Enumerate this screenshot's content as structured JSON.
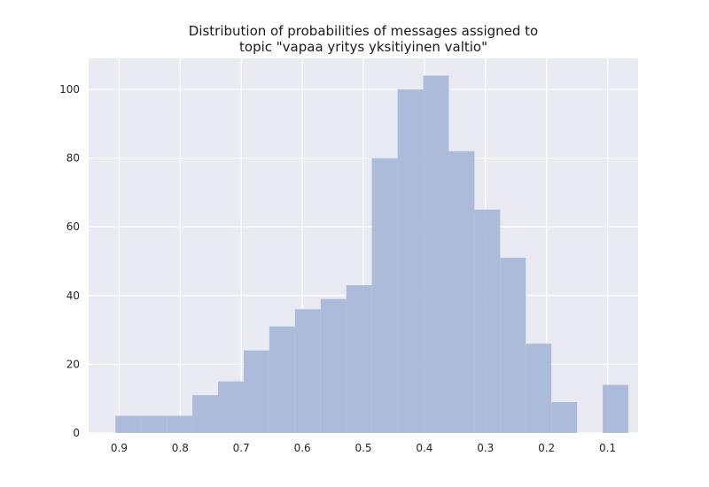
{
  "chart_data": {
    "type": "bar",
    "title_lines": [
      "Distribution of probabilities of messages assigned to",
      "topic \"vapaa yritys yksitiyinen valtio\""
    ],
    "xlabel": "",
    "ylabel": "",
    "x_axis_reversed": true,
    "xlim": [
      0.95,
      0.05
    ],
    "ylim": [
      0,
      109
    ],
    "x_ticks": [
      {
        "value": 0.9,
        "label": "0.9"
      },
      {
        "value": 0.8,
        "label": "0.8"
      },
      {
        "value": 0.7,
        "label": "0.7"
      },
      {
        "value": 0.6,
        "label": "0.6"
      },
      {
        "value": 0.5,
        "label": "0.5"
      },
      {
        "value": 0.4,
        "label": "0.4"
      },
      {
        "value": 0.3,
        "label": "0.3"
      },
      {
        "value": 0.2,
        "label": "0.2"
      },
      {
        "value": 0.1,
        "label": "0.1"
      }
    ],
    "y_ticks": [
      {
        "value": 0,
        "label": "0"
      },
      {
        "value": 20,
        "label": "20"
      },
      {
        "value": 40,
        "label": "40"
      },
      {
        "value": 60,
        "label": "60"
      },
      {
        "value": 80,
        "label": "80"
      },
      {
        "value": 100,
        "label": "100"
      }
    ],
    "bin_width": 0.042,
    "bins": [
      {
        "start": 0.906,
        "count": 5
      },
      {
        "start": 0.864,
        "count": 5
      },
      {
        "start": 0.822,
        "count": 5
      },
      {
        "start": 0.78,
        "count": 11
      },
      {
        "start": 0.738,
        "count": 15
      },
      {
        "start": 0.696,
        "count": 24
      },
      {
        "start": 0.654,
        "count": 31
      },
      {
        "start": 0.612,
        "count": 36
      },
      {
        "start": 0.57,
        "count": 39
      },
      {
        "start": 0.528,
        "count": 43
      },
      {
        "start": 0.486,
        "count": 80
      },
      {
        "start": 0.444,
        "count": 100
      },
      {
        "start": 0.402,
        "count": 104
      },
      {
        "start": 0.36,
        "count": 82
      },
      {
        "start": 0.318,
        "count": 65
      },
      {
        "start": 0.276,
        "count": 51
      },
      {
        "start": 0.234,
        "count": 26
      },
      {
        "start": 0.192,
        "count": 9
      },
      {
        "start": 0.15,
        "count": 0
      },
      {
        "start": 0.108,
        "count": 14
      }
    ],
    "grid": true,
    "colors": {
      "bar": "#a9b8d8",
      "background": "#eaeaf2",
      "grid": "#ffffff"
    }
  }
}
